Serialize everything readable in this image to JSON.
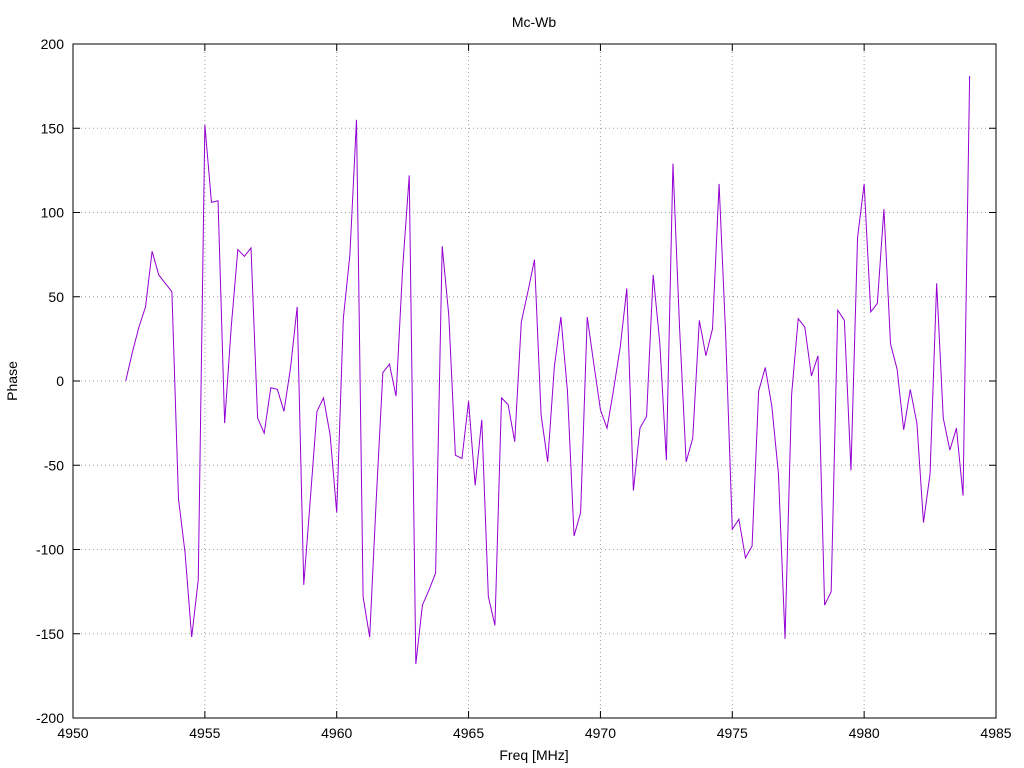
{
  "chart_data": {
    "type": "line",
    "title": "Mc-Wb",
    "xlabel": "Freq [MHz]",
    "ylabel": "Phase",
    "xlim": [
      4950,
      4985
    ],
    "ylim": [
      -200,
      200
    ],
    "xticks": [
      4950,
      4955,
      4960,
      4965,
      4970,
      4975,
      4980,
      4985
    ],
    "yticks": [
      -200,
      -150,
      -100,
      -50,
      0,
      50,
      100,
      150,
      200
    ],
    "grid": true,
    "legend": "none",
    "series": [
      {
        "color": "#9400d3",
        "x": [
          4952.0,
          4952.25,
          4952.5,
          4952.75,
          4953.0,
          4953.25,
          4953.5,
          4953.75,
          4954.0,
          4954.25,
          4954.5,
          4954.75,
          4955.0,
          4955.25,
          4955.5,
          4955.75,
          4956.0,
          4956.25,
          4956.5,
          4956.75,
          4957.0,
          4957.25,
          4957.5,
          4957.75,
          4958.0,
          4958.25,
          4958.5,
          4958.75,
          4959.0,
          4959.25,
          4959.5,
          4959.75,
          4960.0,
          4960.25,
          4960.5,
          4960.75,
          4961.0,
          4961.25,
          4961.5,
          4961.75,
          4962.0,
          4962.25,
          4962.5,
          4962.75,
          4963.0,
          4963.25,
          4963.5,
          4963.75,
          4964.0,
          4964.25,
          4964.5,
          4964.75,
          4965.0,
          4965.25,
          4965.5,
          4965.75,
          4966.0,
          4966.25,
          4966.5,
          4966.75,
          4967.0,
          4967.25,
          4967.5,
          4967.75,
          4968.0,
          4968.25,
          4968.5,
          4968.75,
          4969.0,
          4969.25,
          4969.5,
          4969.75,
          4970.0,
          4970.25,
          4970.5,
          4970.75,
          4971.0,
          4971.25,
          4971.5,
          4971.75,
          4972.0,
          4972.25,
          4972.5,
          4972.75,
          4973.0,
          4973.25,
          4973.5,
          4973.75,
          4974.0,
          4974.25,
          4974.5,
          4974.75,
          4975.0,
          4975.25,
          4975.5,
          4975.75,
          4976.0,
          4976.25,
          4976.5,
          4976.75,
          4977.0,
          4977.25,
          4977.5,
          4977.75,
          4978.0,
          4978.25,
          4978.5,
          4978.75,
          4979.0,
          4979.25,
          4979.5,
          4979.75,
          4980.0,
          4980.25,
          4980.5,
          4980.75,
          4981.0,
          4981.25,
          4981.5,
          4981.75,
          4982.0,
          4982.25,
          4982.5,
          4982.75,
          4983.0,
          4983.25,
          4983.5,
          4983.75,
          4984.0
        ],
        "y": [
          0,
          17,
          32,
          44,
          77,
          63,
          58,
          53,
          -70,
          -102,
          -152,
          -118,
          152,
          106,
          107,
          -25,
          32,
          78,
          74,
          79,
          -22,
          -31,
          -4,
          -5,
          -18,
          8,
          44,
          -121,
          -70,
          -18,
          -10,
          -32,
          -78,
          37,
          75,
          155,
          -128,
          -152,
          -70,
          5,
          10,
          -9,
          67,
          122,
          -168,
          -133,
          -124,
          -114,
          80,
          39,
          -44,
          -46,
          -12,
          -62,
          -23,
          -128,
          -145,
          -10,
          -14,
          -36,
          35,
          53,
          72,
          -20,
          -48,
          8,
          38,
          -6,
          -92,
          -78,
          38,
          10,
          -17,
          -28,
          -5,
          20,
          55,
          -65,
          -28,
          -21,
          63,
          23,
          -47,
          129,
          32,
          -48,
          -34,
          36,
          15,
          31,
          117,
          27,
          -88,
          -82,
          -105,
          -98,
          -6,
          8,
          -15,
          -55,
          -153,
          -8,
          37,
          32,
          3,
          15,
          -133,
          -125,
          42,
          36,
          -53,
          85,
          117,
          41,
          46,
          102,
          22,
          7,
          -29,
          -5,
          -25,
          -84,
          -55,
          58,
          -22,
          -41,
          -28,
          -68,
          181
        ]
      }
    ]
  }
}
